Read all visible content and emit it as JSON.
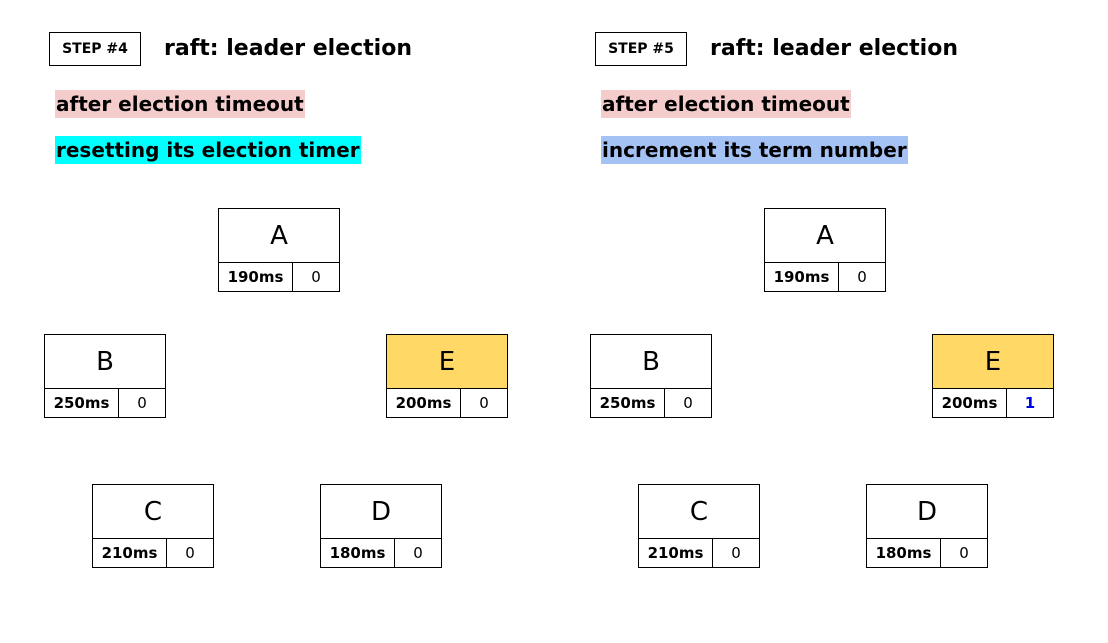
{
  "colors": {
    "candidate": "#ffd866",
    "note_timeout": "#f4cccc",
    "note_reset": "#00ffff",
    "note_term": "#a4c2f4",
    "term_changed": "#0000ee"
  },
  "panels": [
    {
      "step": "STEP #4",
      "title": "raft: leader election",
      "notes": [
        {
          "text": "after election timeout",
          "color": "#f4cccc"
        },
        {
          "text": "resetting its election timer",
          "color": "#00ffff"
        }
      ],
      "nodes": [
        {
          "name": "A",
          "timer": "190ms",
          "term": "0",
          "candidate": false,
          "term_changed": false
        },
        {
          "name": "B",
          "timer": "250ms",
          "term": "0",
          "candidate": false,
          "term_changed": false
        },
        {
          "name": "E",
          "timer": "200ms",
          "term": "0",
          "candidate": true,
          "term_changed": false
        },
        {
          "name": "C",
          "timer": "210ms",
          "term": "0",
          "candidate": false,
          "term_changed": false
        },
        {
          "name": "D",
          "timer": "180ms",
          "term": "0",
          "candidate": false,
          "term_changed": false
        }
      ]
    },
    {
      "step": "STEP #5",
      "title": "raft: leader election",
      "notes": [
        {
          "text": "after election timeout",
          "color": "#f4cccc"
        },
        {
          "text": "increment its term number",
          "color": "#a4c2f4"
        }
      ],
      "nodes": [
        {
          "name": "A",
          "timer": "190ms",
          "term": "0",
          "candidate": false,
          "term_changed": false
        },
        {
          "name": "B",
          "timer": "250ms",
          "term": "0",
          "candidate": false,
          "term_changed": false
        },
        {
          "name": "E",
          "timer": "200ms",
          "term": "1",
          "candidate": true,
          "term_changed": true
        },
        {
          "name": "C",
          "timer": "210ms",
          "term": "0",
          "candidate": false,
          "term_changed": false
        },
        {
          "name": "D",
          "timer": "180ms",
          "term": "0",
          "candidate": false,
          "term_changed": false
        }
      ]
    }
  ]
}
